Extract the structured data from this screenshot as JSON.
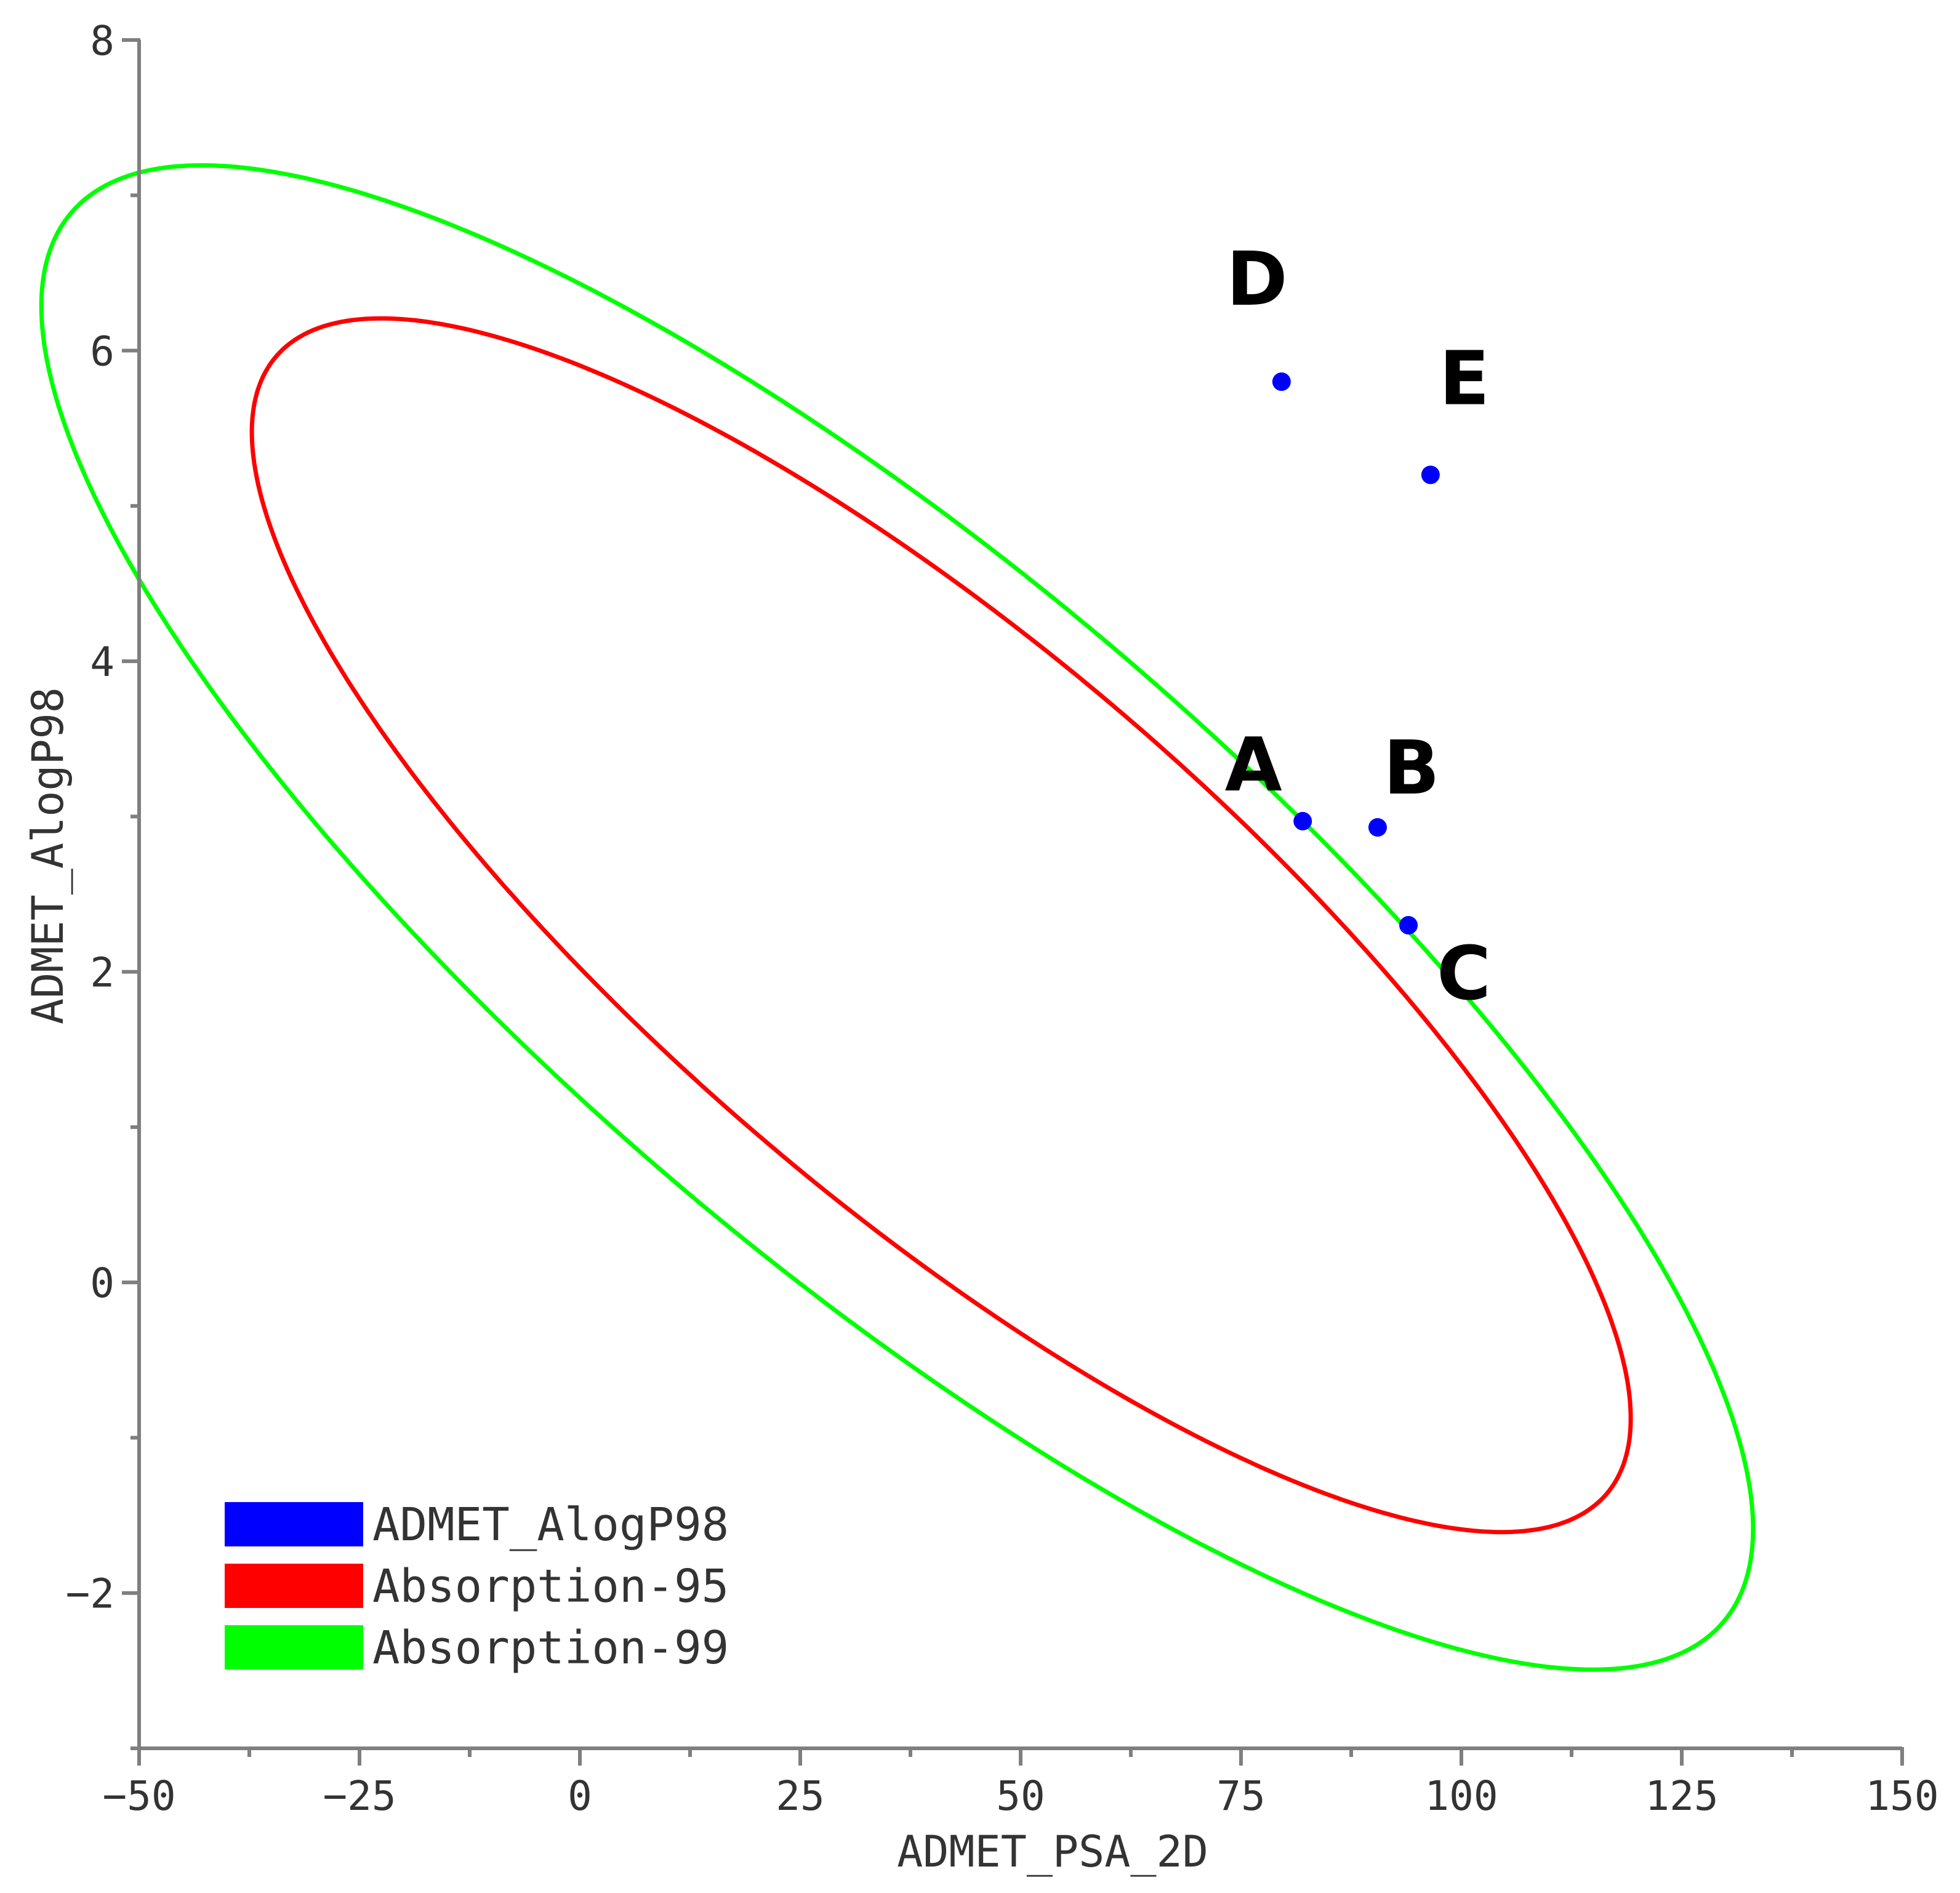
{
  "chart_data": {
    "type": "scatter",
    "xlabel": "ADMET_PSA_2D",
    "ylabel": "ADMET_AlogP98",
    "xlim": [
      -50,
      150
    ],
    "ylim": [
      -3,
      8
    ],
    "xticks": [
      -50,
      -25,
      0,
      25,
      50,
      75,
      100,
      125,
      150
    ],
    "yticks": [
      -2,
      0,
      2,
      4,
      6,
      8
    ],
    "grid": false,
    "legend_position": "bottom-left",
    "series": [
      {
        "name": "ADMET_AlogP98",
        "kind": "points",
        "color": "#0000ff",
        "points": [
          {
            "label": "A",
            "x": 82.0,
            "y": 2.97
          },
          {
            "label": "B",
            "x": 90.5,
            "y": 2.93
          },
          {
            "label": "C",
            "x": 94.0,
            "y": 2.3
          },
          {
            "label": "D",
            "x": 79.6,
            "y": 5.8
          },
          {
            "label": "E",
            "x": 96.5,
            "y": 5.2
          }
        ]
      },
      {
        "name": "Absorption-95",
        "kind": "ellipse",
        "color": "#ff0000",
        "center": [
          41.0,
          2.3
        ],
        "semi_x": 87.0,
        "semi_y": 3.55,
        "rotation_deg": 28,
        "rotation_base": 0.4
      },
      {
        "name": "Absorption-99",
        "kind": "ellipse",
        "color": "#00ff00",
        "center": [
          36.0,
          2.35
        ],
        "semi_x": 108.0,
        "semi_y": 4.4,
        "rotation_deg": 28,
        "rotation_base": 0.4
      }
    ]
  }
}
